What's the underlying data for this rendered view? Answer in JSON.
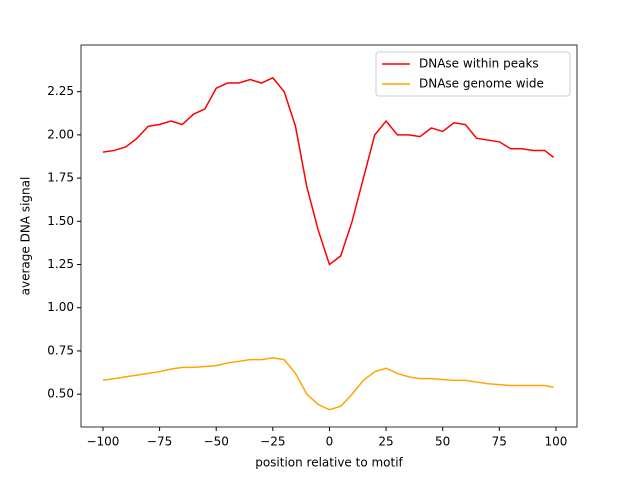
{
  "chart_data": {
    "type": "line",
    "xlabel": "position relative to motif",
    "ylabel": "average DNA signal",
    "x": [
      -100,
      -95,
      -90,
      -85,
      -80,
      -75,
      -70,
      -65,
      -60,
      -55,
      -50,
      -45,
      -40,
      -35,
      -30,
      -25,
      -20,
      -15,
      -10,
      -5,
      0,
      5,
      10,
      15,
      20,
      25,
      30,
      35,
      40,
      45,
      50,
      55,
      60,
      65,
      70,
      75,
      80,
      85,
      90,
      95,
      99
    ],
    "series": [
      {
        "name": "DNAse within peaks",
        "color": "#ff0000",
        "values": [
          1.9,
          1.91,
          1.93,
          1.98,
          2.05,
          2.06,
          2.08,
          2.06,
          2.12,
          2.15,
          2.27,
          2.3,
          2.3,
          2.32,
          2.3,
          2.33,
          2.25,
          2.05,
          1.7,
          1.45,
          1.25,
          1.3,
          1.5,
          1.75,
          2.0,
          2.08,
          2.0,
          2.0,
          1.99,
          2.04,
          2.02,
          2.07,
          2.06,
          1.98,
          1.97,
          1.96,
          1.92,
          1.92,
          1.91,
          1.91,
          1.87
        ]
      },
      {
        "name": "DNAse genome wide",
        "color": "#ffa500",
        "values": [
          0.58,
          0.59,
          0.6,
          0.61,
          0.62,
          0.63,
          0.645,
          0.655,
          0.655,
          0.66,
          0.665,
          0.68,
          0.69,
          0.7,
          0.7,
          0.71,
          0.7,
          0.62,
          0.5,
          0.44,
          0.41,
          0.43,
          0.5,
          0.58,
          0.63,
          0.65,
          0.62,
          0.6,
          0.59,
          0.59,
          0.585,
          0.58,
          0.58,
          0.57,
          0.56,
          0.555,
          0.55,
          0.55,
          0.55,
          0.55,
          0.54
        ]
      }
    ],
    "xlim": [
      -109.7,
      109.3
    ],
    "ylim": [
      0.31,
      2.52
    ],
    "xticks": [
      {
        "value": -100,
        "label": "−100"
      },
      {
        "value": -75,
        "label": "−75"
      },
      {
        "value": -50,
        "label": "−50"
      },
      {
        "value": -25,
        "label": "−25"
      },
      0,
      25,
      50,
      75,
      100
    ],
    "yticks": [
      {
        "value": 0.5,
        "label": "0.50"
      },
      {
        "value": 0.75,
        "label": "0.75"
      },
      {
        "value": 1.0,
        "label": "1.00"
      },
      {
        "value": 1.25,
        "label": "1.25"
      },
      {
        "value": 1.5,
        "label": "1.50"
      },
      {
        "value": 1.75,
        "label": "1.75"
      },
      {
        "value": 2.0,
        "label": "2.00"
      },
      {
        "value": 2.25,
        "label": "2.25"
      }
    ],
    "legend_position": "upper right"
  }
}
